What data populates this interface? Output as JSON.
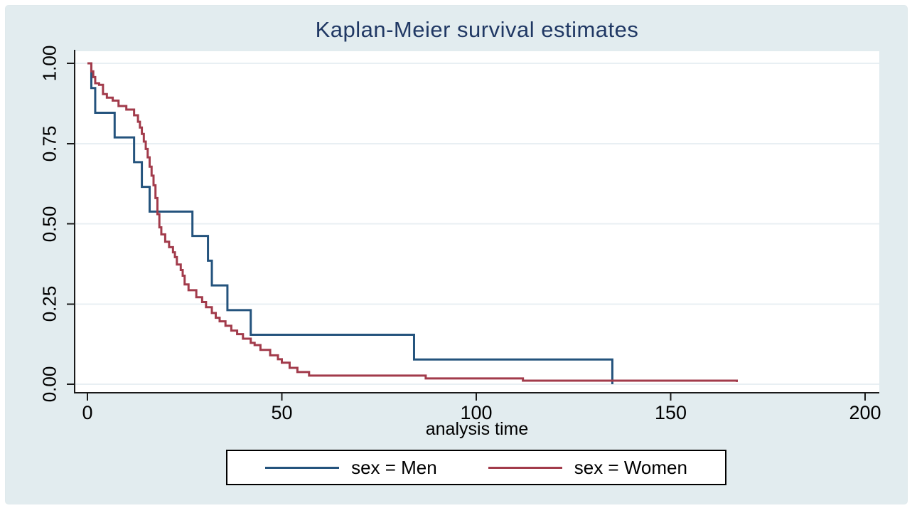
{
  "title": "Kaplan-Meier survival estimates",
  "axes": {
    "x_label": "analysis time",
    "x_tick_labels": [
      "0",
      "50",
      "100",
      "150",
      "200"
    ],
    "y_tick_labels": [
      "0.00",
      "0.25",
      "0.50",
      "0.75",
      "1.00"
    ]
  },
  "legend": {
    "items": [
      {
        "label": "sex = Men",
        "color": "#24537d"
      },
      {
        "label": "sex = Women",
        "color": "#a23b4b"
      }
    ]
  },
  "colors": {
    "title_text": "#203864",
    "panel_bg": "#e2ecef",
    "plot_bg": "#ffffff",
    "grid": "#e8eff3",
    "axis": "#1a1a1a",
    "men_line": "#24537d",
    "women_line": "#a23b4b"
  },
  "chart_data": {
    "type": "line",
    "subtype": "kaplan-meier-step",
    "title": "Kaplan-Meier survival estimates",
    "xlabel": "analysis time",
    "ylabel": "",
    "xlim": [
      0,
      203
    ],
    "ylim": [
      0,
      1
    ],
    "xticks": [
      0,
      50,
      100,
      150,
      200
    ],
    "yticks": [
      0,
      0.25,
      0.5,
      0.75,
      1
    ],
    "grid": "horizontal",
    "legend_position": "bottom",
    "series": [
      {
        "name": "sex = Men",
        "color": "#24537d",
        "points": [
          [
            0,
            1.0
          ],
          [
            1,
            0.923
          ],
          [
            2,
            0.846
          ],
          [
            7,
            0.769
          ],
          [
            12,
            0.692
          ],
          [
            14,
            0.615
          ],
          [
            16,
            0.538
          ],
          [
            27,
            0.462
          ],
          [
            31,
            0.385
          ],
          [
            32,
            0.308
          ],
          [
            36,
            0.231
          ],
          [
            42,
            0.154
          ],
          [
            84,
            0.077
          ],
          [
            135,
            0.0
          ]
        ]
      },
      {
        "name": "sex = Women",
        "color": "#a23b4b",
        "points": [
          [
            0,
            1.0
          ],
          [
            1,
            0.975
          ],
          [
            1.5,
            0.957
          ],
          [
            2,
            0.938
          ],
          [
            3,
            0.933
          ],
          [
            4,
            0.904
          ],
          [
            5,
            0.893
          ],
          [
            6.5,
            0.884
          ],
          [
            8,
            0.867
          ],
          [
            10,
            0.856
          ],
          [
            12,
            0.838
          ],
          [
            13,
            0.818
          ],
          [
            13.5,
            0.8
          ],
          [
            14,
            0.78
          ],
          [
            14.5,
            0.756
          ],
          [
            15,
            0.733
          ],
          [
            15.5,
            0.707
          ],
          [
            16,
            0.678
          ],
          [
            16.5,
            0.65
          ],
          [
            17,
            0.62
          ],
          [
            17.5,
            0.58
          ],
          [
            18,
            0.53
          ],
          [
            18.5,
            0.489
          ],
          [
            19,
            0.467
          ],
          [
            20,
            0.444
          ],
          [
            21,
            0.427
          ],
          [
            22,
            0.411
          ],
          [
            22.5,
            0.396
          ],
          [
            23,
            0.373
          ],
          [
            24,
            0.356
          ],
          [
            24.5,
            0.338
          ],
          [
            25,
            0.311
          ],
          [
            26,
            0.293
          ],
          [
            28,
            0.271
          ],
          [
            29.5,
            0.256
          ],
          [
            30.5,
            0.24
          ],
          [
            32,
            0.222
          ],
          [
            33,
            0.207
          ],
          [
            34,
            0.196
          ],
          [
            35.5,
            0.182
          ],
          [
            37,
            0.167
          ],
          [
            38.5,
            0.156
          ],
          [
            40,
            0.142
          ],
          [
            42,
            0.129
          ],
          [
            43,
            0.122
          ],
          [
            44.5,
            0.107
          ],
          [
            47,
            0.09
          ],
          [
            49,
            0.078
          ],
          [
            50,
            0.067
          ],
          [
            52,
            0.051
          ],
          [
            54,
            0.038
          ],
          [
            57,
            0.027
          ],
          [
            87,
            0.018
          ],
          [
            112,
            0.011
          ],
          [
            167,
            0.007
          ]
        ]
      }
    ]
  }
}
